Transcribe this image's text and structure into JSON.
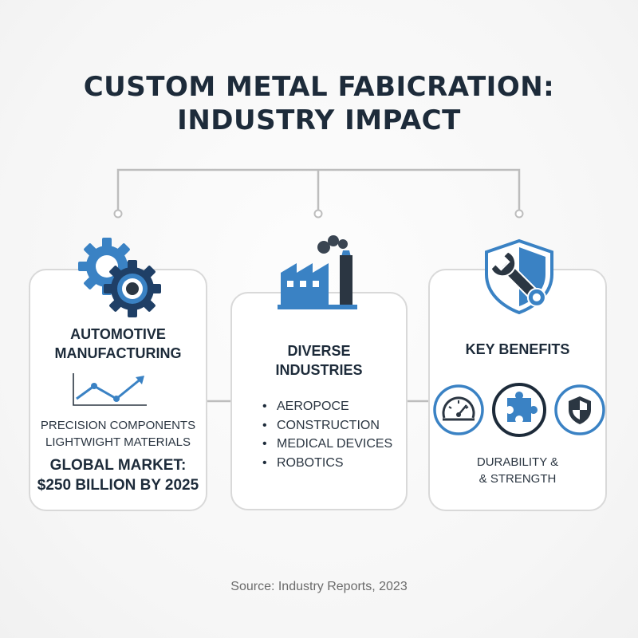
{
  "title": {
    "line1": "CUSTOM METAL FABICRATION:",
    "line2": "INDUSTRY IMPACT"
  },
  "colors": {
    "accent_blue": "#3a82c4",
    "dark_navy": "#1d2b3a",
    "card_border": "#d9d9d9",
    "connector": "#bdbdbd"
  },
  "cards": {
    "automotive": {
      "icon": "gears-icon",
      "heading_line1": "AUTOMOTIVE",
      "heading_line2": "MANUFACTURING",
      "chart_icon": "trend-line-icon",
      "text_line1": "PRECISION COMPONENTS",
      "text_line2": "LIGHTWIGHT MATERIALS",
      "market_line1": "GLOBAL MARKET:",
      "market_line2": "$250 BILLION BY 2025"
    },
    "industries": {
      "icon": "factory-icon",
      "heading_line1": "DIVERSE",
      "heading_line2": "INDUSTRIES",
      "items": [
        "AEROPOCE",
        "CONSTRUCTION",
        "MEDICAL DEVICES",
        "ROBOTICS"
      ]
    },
    "benefits": {
      "icon": "shield-wrench-icon",
      "heading": "KEY BENEFITS",
      "benefit_icons": [
        "gauge-icon",
        "puzzle-icon",
        "shield-icon"
      ],
      "text_line1": "DURABILITY &",
      "text_line2": "& STRENGTH"
    }
  },
  "source": "Source: Industry Reports, 2023"
}
